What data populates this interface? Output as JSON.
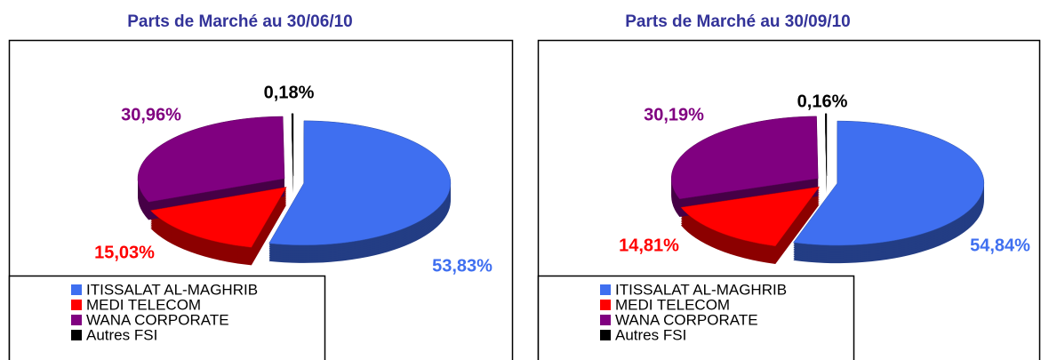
{
  "chart_data": [
    {
      "type": "pie",
      "title": "Parts de Marché au 30/06/10",
      "categories": [
        "ITISSALAT AL-MAGHRIB",
        "MEDI TELECOM",
        "WANA CORPORATE",
        "Autres FSI"
      ],
      "values": [
        53.83,
        15.03,
        30.96,
        0.18
      ],
      "value_labels": [
        "53,83%",
        "15,03%",
        "30,96%",
        "0,18%"
      ],
      "colors": [
        "#3f6ff0",
        "#ff0000",
        "#800080",
        "#000000"
      ]
    },
    {
      "type": "pie",
      "title": "Parts de Marché au 30/09/10",
      "categories": [
        "ITISSALAT AL-MAGHRIB",
        "MEDI TELECOM",
        "WANA CORPORATE",
        "Autres FSI"
      ],
      "values": [
        54.84,
        14.81,
        30.19,
        0.16
      ],
      "value_labels": [
        "54,84%",
        "14,81%",
        "30,19%",
        "0,16%"
      ],
      "colors": [
        "#3f6ff0",
        "#ff0000",
        "#800080",
        "#000000"
      ]
    }
  ]
}
